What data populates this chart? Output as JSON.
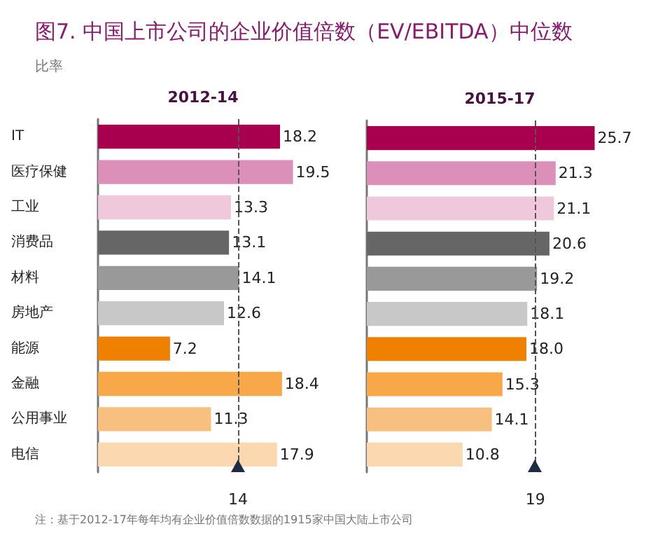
{
  "chart_data": [
    {
      "type": "bar",
      "orientation": "horizontal",
      "title": "图7. 中国上市公司的企业价值倍数（EV/EBITDA）中位数",
      "subtitle": "比率",
      "xlabel": "2012-14",
      "categories": [
        "IT",
        "医疗保健",
        "工业",
        "消费品",
        "材料",
        "房地产",
        "能源",
        "金融",
        "公用事业",
        "电信"
      ],
      "values": [
        18.2,
        19.5,
        13.3,
        13.1,
        14.1,
        12.6,
        7.2,
        18.4,
        11.3,
        17.9
      ],
      "value_labels": [
        "18.2",
        "19.5",
        "13.3",
        "13.1",
        "14.1",
        "12.6",
        "7.2",
        "18.4",
        "11.3",
        "17.9"
      ],
      "colors": [
        "#a8004f",
        "#dc8fb8",
        "#f0c8dc",
        "#666666",
        "#999999",
        "#c8c8c8",
        "#f08000",
        "#f8a848",
        "#f8c080",
        "#fcd8b0"
      ],
      "ref_lines": [
        {
          "axis": "x",
          "value": 14,
          "label": "14",
          "line_style": "dashed",
          "color": "#555555"
        }
      ],
      "tick_labels": "y",
      "annotations": [
        "注：基于2012-17年每年均有企业价值倍数数据的1915家中国大陆上市公司"
      ]
    },
    {
      "type": "bar",
      "orientation": "horizontal",
      "xlabel": "2015-17",
      "categories": [
        null,
        null,
        null,
        null,
        null,
        null,
        null,
        null,
        null,
        null
      ],
      "values": [
        25.7,
        21.3,
        21.1,
        20.6,
        19.2,
        18.1,
        18.0,
        15.3,
        14.1,
        10.8
      ],
      "value_labels": [
        "25.7",
        "21.3",
        "21.1",
        "20.6",
        "19.2",
        "18.1",
        "18.0",
        "15.3",
        "14.1",
        "10.8"
      ],
      "colors": [
        "#a8004f",
        "#dc8fb8",
        "#f0c8dc",
        "#666666",
        "#999999",
        "#c8c8c8",
        "#f08000",
        "#f8a848",
        "#f8c080",
        "#fcd8b0"
      ],
      "ref_lines": [
        {
          "axis": "x",
          "value": 19,
          "label": "19",
          "line_style": "dashed",
          "color": "#555555"
        }
      ],
      "tick_labels": false
    }
  ]
}
